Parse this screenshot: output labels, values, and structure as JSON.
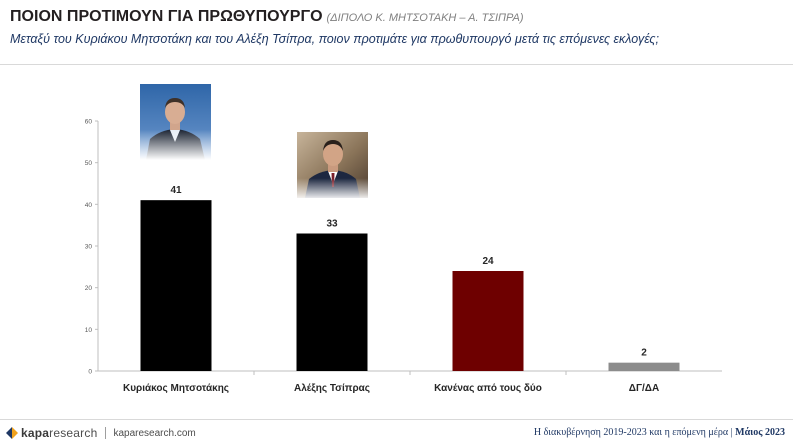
{
  "header": {
    "title": "ΠΟΙΟΝ ΠΡΟΤΙΜΟΥΝ ΓΙΑ ΠΡΩΘΥΠΟΥΡΓΟ",
    "subtitle": "(ΔΙΠΟΛΟ Κ. ΜΗΤΣΟΤΑΚΗ – Α. ΤΣΙΠΡΑ)",
    "question": "Μεταξύ του Κυριάκου Μητσοτάκη και του Αλέξη Τσίπρα, ποιον προτιμάτε για πρωθυπουργό μετά τις επόμενες εκλογές;"
  },
  "chart_data": {
    "type": "bar",
    "categories": [
      "Κυριάκος Μητσοτάκης",
      "Αλέξης Τσίπρας",
      "Κανένας από τους δύο",
      "ΔΓ/ΔΑ"
    ],
    "values": [
      41,
      33,
      24,
      2
    ],
    "colors": [
      "#000000",
      "#000000",
      "#6e0000",
      "#8c8c8c"
    ],
    "ylim": [
      0,
      60
    ],
    "yticks": [
      0,
      10,
      20,
      30,
      40,
      50,
      60
    ],
    "grid": false,
    "legend": "none"
  },
  "images": {
    "photo_1": "portrait-photo",
    "photo_2": "portrait-photo"
  },
  "footer": {
    "brand_light": "kapa",
    "brand_rest": "research",
    "url": "kaparesearch.com",
    "caption": "Η διακυβέρνηση 2019-2023 και η επόμενη μέρα |",
    "date": "Μάιος 2023"
  }
}
